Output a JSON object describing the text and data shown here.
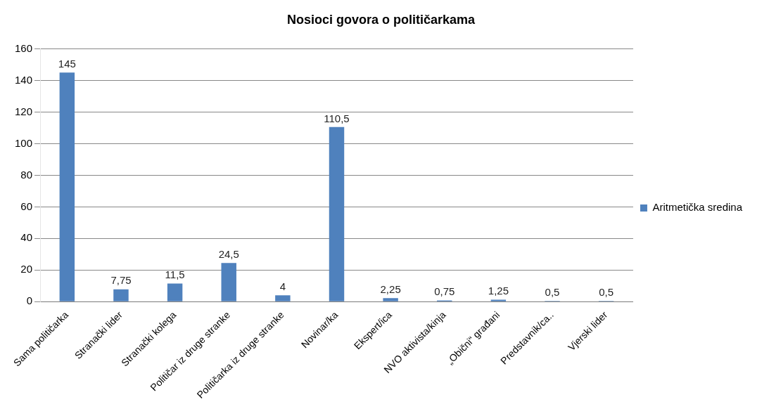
{
  "chart_data": {
    "type": "bar",
    "title": "Nosioci govora o političarkama",
    "categories": [
      "Sama političarka",
      "Stranački lider",
      "Stranački kolega",
      "Političar iz druge stranke",
      "Političarka iz druge stranke",
      "Novinar/ka",
      "Ekspert/ica",
      "NVO aktivista/kinja",
      "„Obični“ građani",
      "Predstavnik/ca..",
      "Vjerski lider"
    ],
    "series": [
      {
        "name": "Aritmetička sredina",
        "color": "#4f81bd",
        "values": [
          145,
          7.75,
          11.5,
          24.5,
          4,
          110.5,
          2.25,
          0.75,
          1.25,
          0.5,
          0.5
        ],
        "value_labels": [
          "145",
          "7,75",
          "11,5",
          "24,5",
          "4",
          "110,5",
          "2,25",
          "0,75",
          "1,25",
          "0,5",
          "0,5"
        ]
      }
    ],
    "ylim": [
      0,
      160
    ],
    "yticks": [
      0,
      20,
      40,
      60,
      80,
      100,
      120,
      140,
      160
    ],
    "grid": "y",
    "legend": "right"
  }
}
